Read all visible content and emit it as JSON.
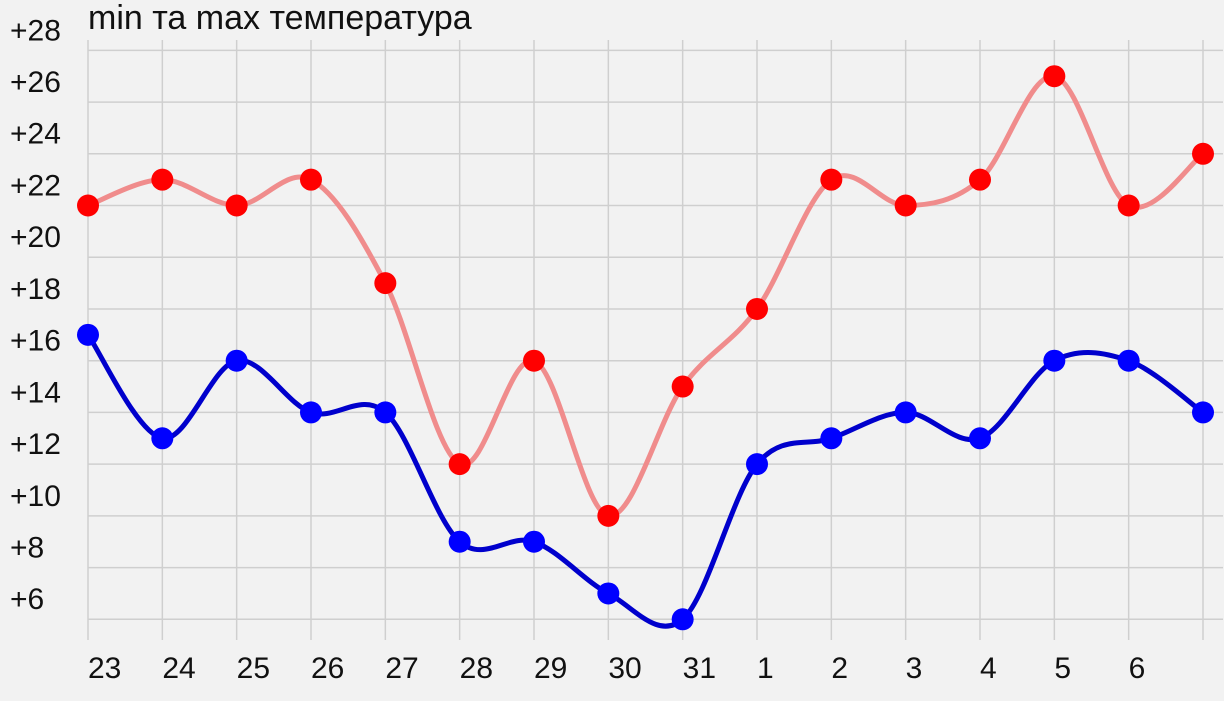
{
  "chart_data": {
    "type": "line",
    "title": "min та max температура",
    "categories": [
      "23",
      "24",
      "25",
      "26",
      "27",
      "28",
      "29",
      "30",
      "31",
      "1",
      "2",
      "3",
      "4",
      "5",
      "6",
      null
    ],
    "series": [
      {
        "name": "max",
        "color": "#ff0000",
        "line_color": "#f08c8c",
        "values": [
          22,
          23,
          22,
          23,
          19,
          12,
          16,
          10,
          15,
          18,
          23,
          22,
          23,
          27,
          22,
          24
        ]
      },
      {
        "name": "min",
        "color": "#0000ff",
        "line_color": "#0000cc",
        "values": [
          17,
          13,
          16,
          14,
          14,
          9,
          9,
          7,
          6,
          12,
          13,
          14,
          13,
          16,
          16,
          14
        ]
      }
    ],
    "ylim": [
      5.2,
      28.4
    ],
    "yticks": [
      {
        "value": 6,
        "label": "+6"
      },
      {
        "value": 8,
        "label": "+8"
      },
      {
        "value": 10,
        "label": "+10"
      },
      {
        "value": 12,
        "label": "+12"
      },
      {
        "value": 14,
        "label": "+14"
      },
      {
        "value": 16,
        "label": "+16"
      },
      {
        "value": 18,
        "label": "+18"
      },
      {
        "value": 20,
        "label": "+20"
      },
      {
        "value": 22,
        "label": "+22"
      },
      {
        "value": 24,
        "label": "+24"
      },
      {
        "value": 26,
        "label": "+26"
      },
      {
        "value": 28,
        "label": "+28"
      }
    ],
    "grid": true
  }
}
